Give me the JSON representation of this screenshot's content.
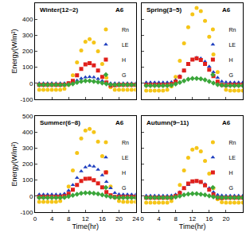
{
  "chart_data": [
    {
      "type": "scatter",
      "title": "Winter(12~2)",
      "annotation": "A6",
      "y_label": "Energy(W/m²)",
      "tick_labels": "y",
      "legend": "upper right",
      "grid": false,
      "x": [
        1,
        2,
        3,
        4,
        5,
        6,
        7,
        8,
        9,
        10,
        11,
        12,
        13,
        14,
        15,
        16,
        17,
        18,
        19,
        20,
        21,
        22,
        23,
        24
      ],
      "xlim": [
        0,
        24
      ],
      "xticks": [
        0,
        4,
        8,
        12,
        16,
        20,
        24
      ],
      "ylim": [
        -100,
        500
      ],
      "yticks": [
        -100,
        0,
        100,
        200,
        300,
        400,
        500
      ],
      "series": [
        {
          "name": "Rn",
          "color": "#f5c518",
          "marker": "circle",
          "values": [
            -40,
            -40,
            -40,
            -40,
            -40,
            -40,
            -35,
            -10,
            50,
            130,
            205,
            260,
            275,
            255,
            200,
            120,
            35,
            -25,
            -40,
            -40,
            -40,
            -40,
            -40,
            -40
          ]
        },
        {
          "name": "LE",
          "color": "#1f3fbf",
          "marker": "triangle-up",
          "values": [
            0,
            0,
            0,
            0,
            0,
            0,
            0,
            2,
            8,
            18,
            30,
            38,
            40,
            37,
            28,
            15,
            5,
            0,
            0,
            0,
            0,
            0,
            0,
            0
          ]
        },
        {
          "name": "H",
          "color": "#e0201b",
          "marker": "square",
          "values": [
            -10,
            -10,
            -10,
            -10,
            -10,
            -10,
            -8,
            0,
            15,
            50,
            90,
            118,
            125,
            112,
            80,
            40,
            5,
            -15,
            -12,
            -10,
            -10,
            -10,
            -10,
            -10
          ]
        },
        {
          "name": "G",
          "color": "#3aa63a",
          "marker": "diamond",
          "values": [
            -10,
            -10,
            -10,
            -10,
            -10,
            -10,
            -10,
            -8,
            -3,
            5,
            12,
            15,
            15,
            12,
            8,
            2,
            -4,
            -8,
            -10,
            -10,
            -10,
            -10,
            -10,
            -10
          ]
        }
      ]
    },
    {
      "type": "scatter",
      "title": "Spring(3~5)",
      "annotation": "A6",
      "tick_labels": false,
      "legend": "upper right",
      "grid": false,
      "x": [
        1,
        2,
        3,
        4,
        5,
        6,
        7,
        8,
        9,
        10,
        11,
        12,
        13,
        14,
        15,
        16,
        17,
        18,
        19,
        20,
        21,
        22,
        23,
        24
      ],
      "xlim": [
        0,
        24
      ],
      "xticks": [
        0,
        4,
        8,
        12,
        16,
        20,
        24
      ],
      "ylim": [
        -100,
        500
      ],
      "yticks": [
        -100,
        0,
        100,
        200,
        300,
        400,
        500
      ],
      "series": [
        {
          "name": "Rn",
          "color": "#f5c518",
          "marker": "circle",
          "values": [
            -45,
            -45,
            -45,
            -45,
            -45,
            -40,
            -20,
            40,
            140,
            250,
            350,
            430,
            470,
            450,
            390,
            290,
            180,
            70,
            -10,
            -40,
            -45,
            -45,
            -45,
            -45
          ]
        },
        {
          "name": "LE",
          "color": "#1f3fbf",
          "marker": "triangle-up",
          "values": [
            5,
            5,
            5,
            5,
            5,
            5,
            8,
            20,
            45,
            80,
            115,
            145,
            160,
            155,
            135,
            105,
            70,
            35,
            12,
            6,
            5,
            5,
            5,
            5
          ]
        },
        {
          "name": "H",
          "color": "#e0201b",
          "marker": "square",
          "values": [
            -10,
            -10,
            -10,
            -10,
            -10,
            -10,
            -5,
            10,
            40,
            80,
            120,
            148,
            155,
            145,
            120,
            85,
            45,
            10,
            -10,
            -12,
            -10,
            -10,
            -10,
            -10
          ]
        },
        {
          "name": "G",
          "color": "#3aa63a",
          "marker": "diamond",
          "values": [
            -15,
            -15,
            -15,
            -15,
            -15,
            -15,
            -12,
            -5,
            5,
            15,
            25,
            30,
            30,
            28,
            22,
            12,
            2,
            -8,
            -12,
            -15,
            -15,
            -15,
            -15,
            -15
          ]
        }
      ]
    },
    {
      "type": "scatter",
      "title": "Summer(6~8)",
      "annotation": "A6",
      "x_label": "Time(hr)",
      "y_label": "Energy(W/m²)",
      "tick_labels": true,
      "legend": "upper right",
      "grid": false,
      "x": [
        1,
        2,
        3,
        4,
        5,
        6,
        7,
        8,
        9,
        10,
        11,
        12,
        13,
        14,
        15,
        16,
        17,
        18,
        19,
        20,
        21,
        22,
        23,
        24
      ],
      "xlim": [
        0,
        24
      ],
      "xticks": [
        0,
        4,
        8,
        12,
        16,
        20,
        24
      ],
      "ylim": [
        -100,
        500
      ],
      "yticks": [
        -100,
        0,
        100,
        200,
        300,
        400,
        500
      ],
      "series": [
        {
          "name": "Rn",
          "color": "#f5c518",
          "marker": "circle",
          "values": [
            -35,
            -35,
            -35,
            -35,
            -35,
            -30,
            -5,
            60,
            160,
            270,
            360,
            410,
            420,
            400,
            340,
            250,
            150,
            60,
            -10,
            -30,
            -35,
            -35,
            -35,
            -35
          ]
        },
        {
          "name": "LE",
          "color": "#1f3fbf",
          "marker": "triangle-up",
          "values": [
            10,
            10,
            10,
            10,
            10,
            10,
            15,
            35,
            70,
            115,
            155,
            180,
            190,
            185,
            165,
            130,
            90,
            50,
            20,
            12,
            10,
            10,
            10,
            10
          ]
        },
        {
          "name": "H",
          "color": "#e0201b",
          "marker": "square",
          "values": [
            -5,
            -5,
            -5,
            -5,
            -5,
            -5,
            0,
            15,
            40,
            70,
            95,
            108,
            110,
            100,
            80,
            55,
            25,
            5,
            -5,
            -5,
            -5,
            -5,
            -5,
            -5
          ]
        },
        {
          "name": "G",
          "color": "#3aa63a",
          "marker": "diamond",
          "values": [
            -10,
            -10,
            -10,
            -10,
            -10,
            -10,
            -8,
            -2,
            5,
            12,
            18,
            20,
            20,
            18,
            14,
            8,
            2,
            -4,
            -8,
            -10,
            -10,
            -10,
            -10,
            -10
          ]
        }
      ]
    },
    {
      "type": "scatter",
      "title": "Autumn(9~11)",
      "annotation": "A6",
      "x_label": "Time(hr)",
      "tick_labels": "x",
      "legend": "upper right",
      "grid": false,
      "x": [
        1,
        2,
        3,
        4,
        5,
        6,
        7,
        8,
        9,
        10,
        11,
        12,
        13,
        14,
        15,
        16,
        17,
        18,
        19,
        20,
        21,
        22,
        23,
        24
      ],
      "xlim": [
        0,
        24
      ],
      "xticks": [
        0,
        4,
        8,
        12,
        16,
        20,
        24
      ],
      "ylim": [
        -100,
        500
      ],
      "yticks": [
        -100,
        0,
        100,
        200,
        300,
        400,
        500
      ],
      "series": [
        {
          "name": "Rn",
          "color": "#f5c518",
          "marker": "circle",
          "values": [
            -40,
            -40,
            -40,
            -40,
            -40,
            -40,
            -30,
            0,
            70,
            160,
            240,
            290,
            300,
            280,
            220,
            140,
            50,
            -20,
            -38,
            -40,
            -40,
            -40,
            -40,
            -40
          ]
        },
        {
          "name": "LE",
          "color": "#1f3fbf",
          "marker": "triangle-up",
          "values": [
            3,
            3,
            3,
            3,
            3,
            3,
            4,
            10,
            25,
            45,
            70,
            88,
            95,
            90,
            75,
            50,
            25,
            8,
            4,
            3,
            3,
            3,
            3,
            3
          ]
        },
        {
          "name": "H",
          "color": "#e0201b",
          "marker": "square",
          "values": [
            -10,
            -10,
            -10,
            -10,
            -10,
            -10,
            -8,
            0,
            20,
            50,
            78,
            92,
            95,
            88,
            68,
            40,
            10,
            -10,
            -12,
            -10,
            -10,
            -10,
            -10,
            -10
          ]
        },
        {
          "name": "G",
          "color": "#3aa63a",
          "marker": "diamond",
          "values": [
            -10,
            -10,
            -10,
            -10,
            -10,
            -10,
            -10,
            -6,
            0,
            8,
            13,
            15,
            15,
            12,
            8,
            2,
            -4,
            -8,
            -10,
            -10,
            -10,
            -10,
            -10,
            -10
          ]
        }
      ]
    }
  ]
}
